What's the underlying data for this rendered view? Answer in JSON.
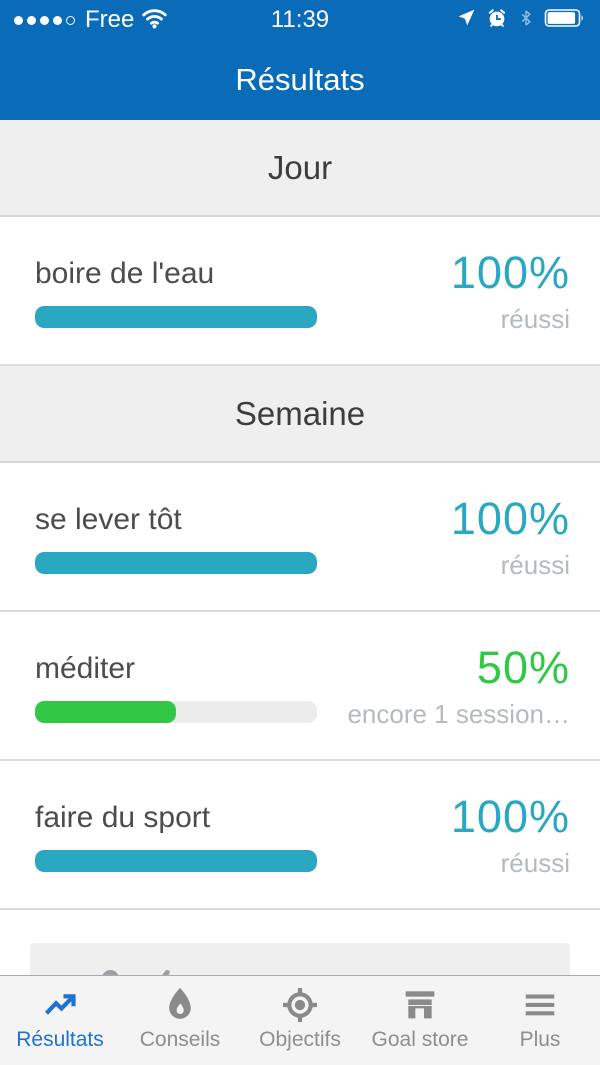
{
  "colors": {
    "header_blue": "#0a6cb8",
    "teal": "#2aa8c2",
    "green": "#30c845",
    "active_tab": "#1e73d0",
    "inactive_icon": "#8a8a8a"
  },
  "status_bar": {
    "carrier": "Free",
    "time": "11:39",
    "signal_dots_filled": 4,
    "signal_dots_total": 5,
    "right_icons": [
      "location-icon",
      "alarm-icon",
      "bluetooth-icon",
      "battery-icon"
    ]
  },
  "header": {
    "title": "Résultats"
  },
  "sections": [
    {
      "label": "Jour",
      "rows": [
        {
          "name": "boire de l'eau",
          "percent": "100%",
          "status": "réussi",
          "progress": 100,
          "color": "teal"
        }
      ]
    },
    {
      "label": "Semaine",
      "rows": [
        {
          "name": "se lever tôt",
          "percent": "100%",
          "status": "réussi",
          "progress": 100,
          "color": "teal"
        },
        {
          "name": "méditer",
          "percent": "50%",
          "status": "encore 1 session…",
          "progress": 50,
          "color": "green"
        },
        {
          "name": "faire du sport",
          "percent": "100%",
          "status": "réussi",
          "progress": 100,
          "color": "teal"
        }
      ]
    }
  ],
  "tabbar": {
    "tabs": [
      {
        "label": "Résultats",
        "icon": "trending-up-icon",
        "active": true
      },
      {
        "label": "Conseils",
        "icon": "flame-icon",
        "active": false
      },
      {
        "label": "Objectifs",
        "icon": "target-icon",
        "active": false
      },
      {
        "label": "Goal store",
        "icon": "store-icon",
        "active": false
      },
      {
        "label": "Plus",
        "icon": "menu-icon",
        "active": false
      }
    ]
  }
}
